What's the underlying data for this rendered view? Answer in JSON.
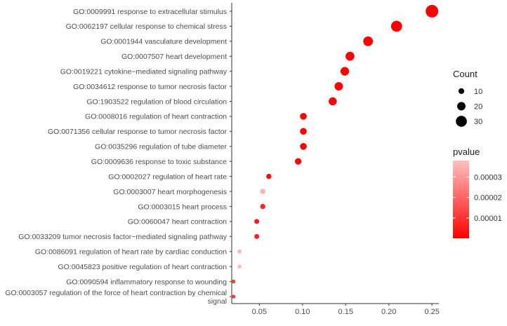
{
  "chart_data": {
    "type": "scatter",
    "title": "",
    "xlabel": "",
    "ylabel": "",
    "xlim": [
      0.018,
      0.258
    ],
    "x_ticks": [
      0.05,
      0.1,
      0.15,
      0.2,
      0.25
    ],
    "x_tick_labels": [
      "0.05",
      "0.10",
      "0.15",
      "0.20",
      "0.25"
    ],
    "grid": false,
    "categories": [
      "GO:0009991 response to extracellular stimulus",
      "GO:0062197 cellular response to chemical stress",
      "GO:0001944 vasculature development",
      "GO:0007507 heart development",
      "GO:0019221 cytokine−mediated signaling pathway",
      "GO:0034612 response to tumor necrosis factor",
      "GO:1903522 regulation of blood circulation",
      "GO:0008016 regulation of heart contraction",
      "GO:0071356 cellular response to tumor necrosis factor",
      "GO:0035296 regulation of tube diameter",
      "GO:0009636 response to toxic substance",
      "GO:0002027 regulation of heart rate",
      "GO:0003007 heart morphogenesis",
      "GO:0003015 heart process",
      "GO:0060047 heart contraction",
      "GO:0033209 tumor necrosis factor−mediated signaling pathway",
      "GO:0086091 regulation of heart rate by cardiac conduction",
      "GO:0045823 positive regulation of heart contraction",
      "GO:0090594 inflammatory response to wounding",
      "GO:0003057 regulation of the force of heart contraction by chemical signal"
    ],
    "points": [
      {
        "x": 0.25,
        "count": 36,
        "pvalue": 1e-07
      },
      {
        "x": 0.209,
        "count": 30,
        "pvalue": 1e-07
      },
      {
        "x": 0.176,
        "count": 25,
        "pvalue": 2e-07
      },
      {
        "x": 0.155,
        "count": 22,
        "pvalue": 3e-07
      },
      {
        "x": 0.149,
        "count": 21,
        "pvalue": 4e-07
      },
      {
        "x": 0.142,
        "count": 20,
        "pvalue": 5e-07
      },
      {
        "x": 0.135,
        "count": 19,
        "pvalue": 5e-07
      },
      {
        "x": 0.101,
        "count": 14,
        "pvalue": 4e-07
      },
      {
        "x": 0.101,
        "count": 14,
        "pvalue": 4e-07
      },
      {
        "x": 0.101,
        "count": 14,
        "pvalue": 4e-07
      },
      {
        "x": 0.095,
        "count": 13,
        "pvalue": 1e-06
      },
      {
        "x": 0.061,
        "count": 8,
        "pvalue": 3e-06
      },
      {
        "x": 0.054,
        "count": 8,
        "pvalue": 3.5e-05
      },
      {
        "x": 0.054,
        "count": 8,
        "pvalue": 8e-06
      },
      {
        "x": 0.047,
        "count": 7,
        "pvalue": 5e-06
      },
      {
        "x": 0.047,
        "count": 7,
        "pvalue": 6e-06
      },
      {
        "x": 0.027,
        "count": 4,
        "pvalue": 3.6e-05
      },
      {
        "x": 0.027,
        "count": 4,
        "pvalue": 3.7e-05
      },
      {
        "x": 0.02,
        "count": 3,
        "pvalue": 1.2e-05
      },
      {
        "x": 0.02,
        "count": 3,
        "pvalue": 1.2e-05
      }
    ],
    "legend_count": {
      "title": "Count",
      "values": [
        10,
        20,
        30
      ],
      "labels": [
        "10",
        "20",
        "30"
      ]
    },
    "legend_pvalue": {
      "title": "pvalue",
      "range": [
        1e-07,
        3.8e-05
      ],
      "ticks": [
        1e-05,
        2e-05,
        3e-05
      ],
      "tick_labels": [
        "0.00001",
        "0.00002",
        "0.00003"
      ],
      "color_low": "#ff0000",
      "color_high": "#ffc0c0"
    },
    "legend_placement": "right"
  }
}
